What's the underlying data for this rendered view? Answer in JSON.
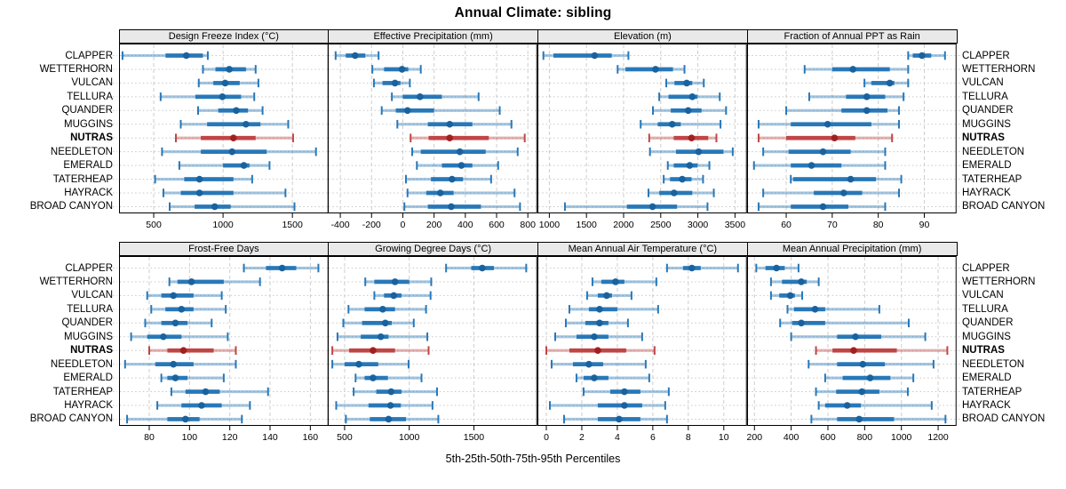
{
  "title": "Annual Climate: sibling",
  "caption": "5th-25th-50th-75th-95th Percentiles",
  "sites": [
    "CLAPPER",
    "WETTERHORN",
    "VULCAN",
    "TELLURA",
    "QUANDER",
    "MUGGINS",
    "NUTRAS",
    "NEEDLETON",
    "EMERALD",
    "TATERHEAP",
    "HAYRACK",
    "BROAD CANYON"
  ],
  "highlight_site": "NUTRAS",
  "colors": {
    "blue": "#2878b8",
    "blue_dark": "#1a629e",
    "red": "#c04545",
    "red_dark": "#a02020",
    "strip_bg": "#e9e9e9",
    "grid_v": "#cdcdcd",
    "grid_h": "#c8c8c8",
    "border": "#000000"
  },
  "chart_data": {
    "type": "dotplot-intervals",
    "percentile_levels": [
      5,
      25,
      50,
      75,
      95
    ],
    "legend": "5th-25th-50th-75th-95th Percentiles",
    "rows": [
      {
        "panels": [
          {
            "title": "Design Freeze Index (°C)",
            "ticks": [
              500,
              1000,
              1500
            ],
            "domain": [
              250,
              1760
            ],
            "values": [
              [
                275,
                585,
                735,
                855,
                890
              ],
              [
                855,
                945,
                1045,
                1165,
                1235
              ],
              [
                825,
                930,
                1015,
                1120,
                1255
              ],
              [
                550,
                800,
                995,
                1130,
                1225
              ],
              [
                820,
                965,
                1095,
                1180,
                1285
              ],
              [
                695,
                885,
                1165,
                1270,
                1470
              ],
              [
                660,
                840,
                1075,
                1235,
                1505
              ],
              [
                560,
                840,
                1065,
                1315,
                1670
              ],
              [
                685,
                1000,
                1150,
                1190,
                1335
              ],
              [
                510,
                720,
                830,
                1075,
                1210
              ],
              [
                570,
                695,
                830,
                1075,
                1450
              ],
              [
                615,
                795,
                940,
                1055,
                1515
              ]
            ]
          },
          {
            "title": "Effective Precipitation (mm)",
            "ticks": [
              -400,
              -200,
              0,
              200,
              400,
              600,
              800
            ],
            "domain": [
              -480,
              860
            ],
            "values": [
              [
                -430,
                -365,
                -305,
                -240,
                -155
              ],
              [
                -195,
                -120,
                -5,
                35,
                115
              ],
              [
                -185,
                -130,
                -50,
                -15,
                45
              ],
              [
                -70,
                0,
                110,
                250,
                485
              ],
              [
                -135,
                -45,
                30,
                200,
                620
              ],
              [
                -35,
                160,
                300,
                445,
                695
              ],
              [
                50,
                165,
                300,
                550,
                780
              ],
              [
                60,
                115,
                365,
                530,
                735
              ],
              [
                90,
                250,
                375,
                445,
                610
              ],
              [
                20,
                180,
                315,
                385,
                565
              ],
              [
                30,
                150,
                240,
                325,
                715
              ],
              [
                10,
                160,
                310,
                500,
                750
              ]
            ]
          },
          {
            "title": "Elevation (m)",
            "ticks": [
              1000,
              1500,
              2000,
              2500,
              3000,
              3500
            ],
            "domain": [
              840,
              3660
            ],
            "values": [
              [
                920,
                1055,
                1610,
                1840,
                2065
              ],
              [
                1920,
                2025,
                2430,
                2665,
                2820
              ],
              [
                2575,
                2685,
                2850,
                2925,
                3080
              ],
              [
                2480,
                2605,
                2925,
                2995,
                3295
              ],
              [
                2395,
                2635,
                2870,
                3050,
                3380
              ],
              [
                2230,
                2460,
                2655,
                2770,
                3305
              ],
              [
                2345,
                2675,
                2915,
                3140,
                3250
              ],
              [
                2355,
                2705,
                3010,
                3345,
                3470
              ],
              [
                2595,
                2675,
                2890,
                2995,
                3155
              ],
              [
                2540,
                2625,
                2790,
                2915,
                3070
              ],
              [
                2335,
                2480,
                2680,
                2925,
                3215
              ],
              [
                1210,
                2045,
                2390,
                2720,
                3130
              ]
            ]
          },
          {
            "title": "Fraction of Annual PPT as Rain",
            "ticks": [
              60,
              70,
              80,
              90
            ],
            "domain": [
              51.5,
              97
            ],
            "values": [
              [
                86.5,
                87.5,
                89.5,
                91.5,
                94.5
              ],
              [
                64,
                70,
                74.5,
                82.5,
                86.5
              ],
              [
                77,
                78.5,
                82.5,
                83.5,
                86.5
              ],
              [
                65,
                73,
                77.5,
                81.5,
                85.5
              ],
              [
                60,
                72,
                77.5,
                82,
                84.5
              ],
              [
                54,
                61,
                69,
                78.5,
                84.5
              ],
              [
                54,
                60,
                70.5,
                75,
                83
              ],
              [
                55,
                60.5,
                68,
                74,
                81.5
              ],
              [
                53,
                61,
                65.5,
                72,
                81.5
              ],
              [
                61,
                61.5,
                74,
                79.5,
                85
              ],
              [
                55,
                66,
                72.5,
                76.5,
                84.5
              ],
              [
                54,
                61,
                68,
                73.5,
                81.5
              ]
            ]
          }
        ]
      },
      {
        "panels": [
          {
            "title": "Frost-Free Days",
            "ticks": [
              80,
              100,
              120,
              140,
              160
            ],
            "domain": [
              65,
              169
            ],
            "values": [
              [
                127,
                138,
                146,
                153,
                164
              ],
              [
                90,
                94,
                101,
                117,
                135
              ],
              [
                79,
                86,
                92,
                102,
                116
              ],
              [
                81,
                88,
                96,
                102,
                118
              ],
              [
                78,
                86,
                93,
                99,
                111
              ],
              [
                71,
                79,
                87,
                96,
                119
              ],
              [
                80,
                89,
                97,
                112,
                123
              ],
              [
                68,
                83,
                92,
                102,
                123
              ],
              [
                86,
                89,
                93,
                99,
                117
              ],
              [
                91,
                98,
                108,
                115,
                139
              ],
              [
                84,
                96,
                106,
                116,
                130
              ],
              [
                69,
                89,
                98,
                105,
                126
              ]
            ]
          },
          {
            "title": "Growing Degree Days (°C)",
            "ticks": [
              500,
              1000,
              1500
            ],
            "domain": [
              370,
              1990
            ],
            "values": [
              [
                1285,
                1480,
                1565,
                1655,
                1905
              ],
              [
                660,
                730,
                890,
                1000,
                1170
              ],
              [
                730,
                805,
                880,
                940,
                1165
              ],
              [
                530,
                655,
                795,
                890,
                1130
              ],
              [
                490,
                635,
                815,
                865,
                1035
              ],
              [
                445,
                625,
                780,
                840,
                1140
              ],
              [
                405,
                535,
                720,
                890,
                1150
              ],
              [
                405,
                500,
                610,
                760,
                995
              ],
              [
                585,
                655,
                720,
                835,
                1095
              ],
              [
                570,
                745,
                860,
                940,
                1215
              ],
              [
                435,
                685,
                855,
                935,
                1180
              ],
              [
                510,
                695,
                840,
                975,
                1225
              ]
            ]
          },
          {
            "title": "Mean Annual Air Temperature (°C)",
            "ticks": [
              0,
              2,
              4,
              6,
              8,
              10
            ],
            "domain": [
              -0.5,
              11.3
            ],
            "values": [
              [
                6.8,
                7.7,
                8.2,
                8.7,
                10.8
              ],
              [
                2.6,
                3.1,
                3.9,
                4.4,
                6.2
              ],
              [
                2.3,
                2.9,
                3.4,
                3.7,
                4.8
              ],
              [
                1.3,
                2.4,
                3.0,
                4.0,
                6.3
              ],
              [
                1.1,
                2.2,
                3.0,
                3.5,
                4.6
              ],
              [
                0.5,
                1.7,
                2.7,
                3.5,
                5.4
              ],
              [
                0.0,
                1.3,
                2.9,
                4.5,
                6.1
              ],
              [
                0.3,
                1.5,
                2.4,
                3.2,
                5.6
              ],
              [
                1.7,
                2.1,
                2.7,
                3.5,
                5.8
              ],
              [
                2.1,
                3.6,
                4.4,
                5.3,
                6.9
              ],
              [
                0.2,
                2.9,
                4.4,
                5.4,
                6.7
              ],
              [
                1.0,
                2.9,
                4.1,
                5.3,
                6.8
              ]
            ]
          },
          {
            "title": "Mean Annual Precipitation (mm)",
            "ticks": [
              200,
              400,
              600,
              800,
              1000,
              1200
            ],
            "domain": [
              160,
              1300
            ],
            "values": [
              [
                210,
                260,
                320,
                365,
                440
              ],
              [
                290,
                350,
                455,
                485,
                550
              ],
              [
                290,
                335,
                395,
                420,
                460
              ],
              [
                380,
                415,
                530,
                585,
                880
              ],
              [
                340,
                405,
                455,
                585,
                1040
              ],
              [
                400,
                650,
                750,
                890,
                1130
              ],
              [
                535,
                625,
                740,
                975,
                1250
              ],
              [
                495,
                650,
                790,
                910,
                1175
              ],
              [
                585,
                680,
                830,
                940,
                1065
              ],
              [
                535,
                645,
                785,
                880,
                1035
              ],
              [
                550,
                585,
                705,
                780,
                1165
              ],
              [
                510,
                650,
                770,
                960,
                1240
              ]
            ]
          }
        ]
      }
    ]
  }
}
